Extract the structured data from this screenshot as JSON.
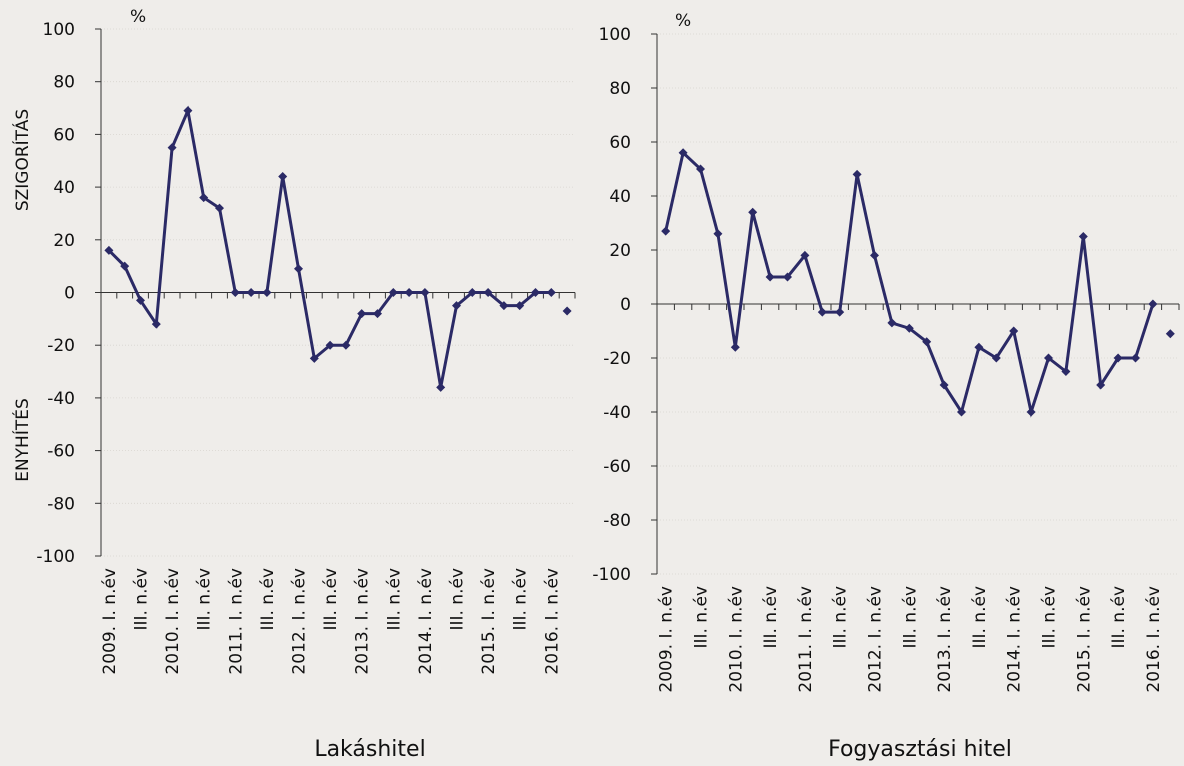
{
  "chart_data": [
    {
      "type": "line",
      "title": "Lakáshitel",
      "y_unit": "%",
      "annotations": [
        "SZIGORÍTÁS",
        "ENYHÍTÉS"
      ],
      "categories": [
        "2009. I. n.év",
        null,
        "III. n.év",
        null,
        "2010. I. n.év",
        null,
        "III. n.év",
        null,
        "2011. I. n.év",
        null,
        "III. n.év",
        null,
        "2012. I. n.év",
        null,
        "III. n.év",
        null,
        "2013. I. n.év",
        null,
        "III. n.év",
        null,
        "2014. I. n.év",
        null,
        "III. n.év",
        null,
        "2015. I. n.év",
        null,
        "III. n.év",
        null,
        "2016. I. n.év",
        null
      ],
      "series": [
        {
          "color": "#2b2a66",
          "show_line": true,
          "values": [
            16,
            10,
            -3,
            -12,
            55,
            69,
            36,
            32,
            0,
            0,
            0,
            44,
            9,
            -25,
            -20,
            -20,
            -8,
            -8,
            0,
            0,
            0,
            -36,
            -5,
            0,
            0,
            -5,
            -5,
            0,
            0,
            null
          ]
        },
        {
          "color": "#2b2a66",
          "show_line": false,
          "values": [
            null,
            null,
            null,
            null,
            null,
            null,
            null,
            null,
            null,
            null,
            null,
            null,
            null,
            null,
            null,
            null,
            null,
            null,
            null,
            null,
            null,
            null,
            null,
            null,
            null,
            null,
            null,
            null,
            null,
            -7
          ]
        }
      ],
      "ylim": [
        -100,
        100
      ],
      "yticks": [
        -100,
        -80,
        -60,
        -40,
        -20,
        0,
        20,
        40,
        60,
        80,
        100
      ],
      "grid": true
    },
    {
      "type": "line",
      "title": "Fogyasztási hitel",
      "y_unit": "%",
      "categories": [
        "2009. I. n.év",
        null,
        "III. n.év",
        null,
        "2010. I. n.év",
        null,
        "III. n.év",
        null,
        "2011. I. n.év",
        null,
        "III. n.év",
        null,
        "2012. I. n.év",
        null,
        "III. n.év",
        null,
        "2013. I. n.év",
        null,
        "III. n.év",
        null,
        "2014. I. n.év",
        null,
        "III. n.év",
        null,
        "2015. I. n.év",
        null,
        "III. n.év",
        null,
        "2016. I. n.év",
        null
      ],
      "series": [
        {
          "color": "#2b2a66",
          "show_line": true,
          "values": [
            27,
            56,
            50,
            26,
            -16,
            34,
            10,
            10,
            18,
            -3,
            -3,
            48,
            18,
            -7,
            -9,
            -14,
            -30,
            -40,
            -16,
            -20,
            -10,
            -40,
            -20,
            -25,
            25,
            -30,
            -20,
            -20,
            0,
            null
          ]
        },
        {
          "color": "#2b2a66",
          "show_line": false,
          "values": [
            null,
            null,
            null,
            null,
            null,
            null,
            null,
            null,
            null,
            null,
            null,
            null,
            null,
            null,
            null,
            null,
            null,
            null,
            null,
            null,
            null,
            null,
            null,
            null,
            null,
            null,
            null,
            null,
            null,
            -11
          ]
        }
      ],
      "ylim": [
        -100,
        100
      ],
      "yticks": [
        -100,
        -80,
        -60,
        -40,
        -20,
        0,
        20,
        40,
        60,
        80,
        100
      ],
      "grid": true
    }
  ]
}
